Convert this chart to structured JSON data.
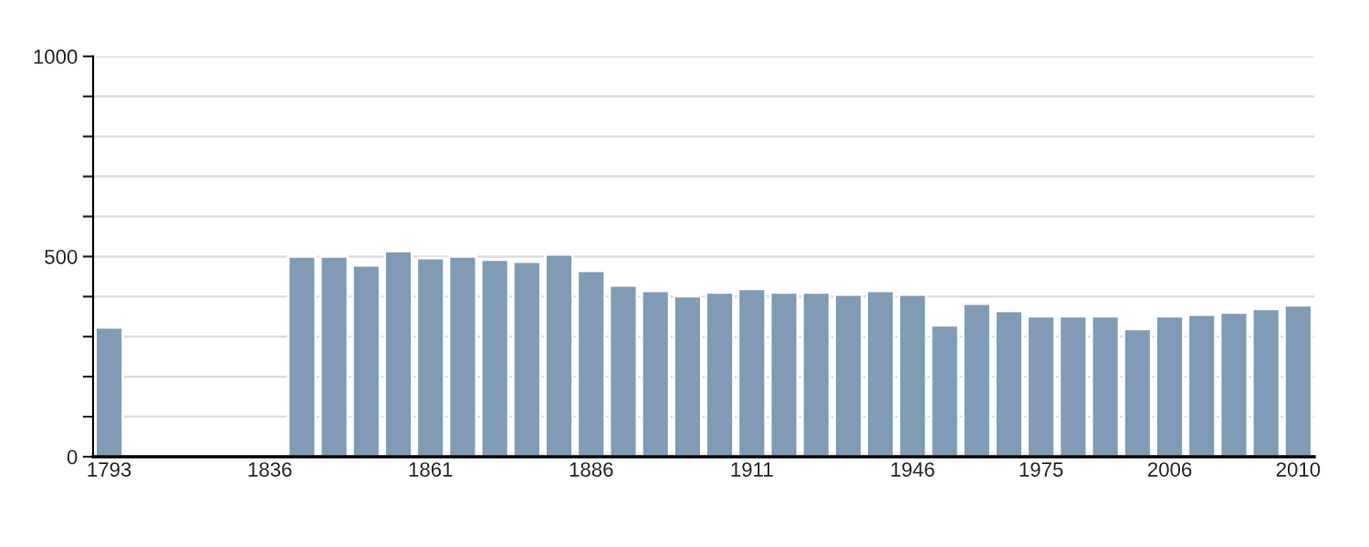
{
  "chart_data": {
    "type": "bar",
    "categories": [
      "1793",
      null,
      null,
      null,
      null,
      "1836",
      null,
      null,
      null,
      null,
      "1861",
      null,
      null,
      null,
      null,
      "1886",
      null,
      null,
      null,
      null,
      "1911",
      null,
      null,
      null,
      null,
      "1946",
      null,
      null,
      null,
      "1975",
      null,
      null,
      null,
      "2006",
      null,
      null,
      null,
      "2010"
    ],
    "values": [
      323,
      null,
      null,
      null,
      null,
      null,
      500,
      500,
      478,
      514,
      496,
      500,
      492,
      487,
      505,
      464,
      428,
      414,
      401,
      410,
      419,
      410,
      410,
      405,
      414,
      405,
      328,
      382,
      364,
      351,
      351,
      351,
      319,
      351,
      355,
      360,
      369,
      378
    ],
    "color": "#7f9bb5",
    "ylim": [
      0,
      1000
    ],
    "yticks": [
      0,
      {
        "value": 100,
        "label": null
      },
      {
        "value": 200,
        "label": null
      },
      {
        "value": 300,
        "label": null
      },
      {
        "value": 400,
        "label": null
      },
      500,
      {
        "value": 600,
        "label": null
      },
      {
        "value": 700,
        "label": null
      },
      {
        "value": 800,
        "label": null
      },
      {
        "value": 900,
        "label": null
      },
      1000
    ],
    "grid": "y"
  }
}
